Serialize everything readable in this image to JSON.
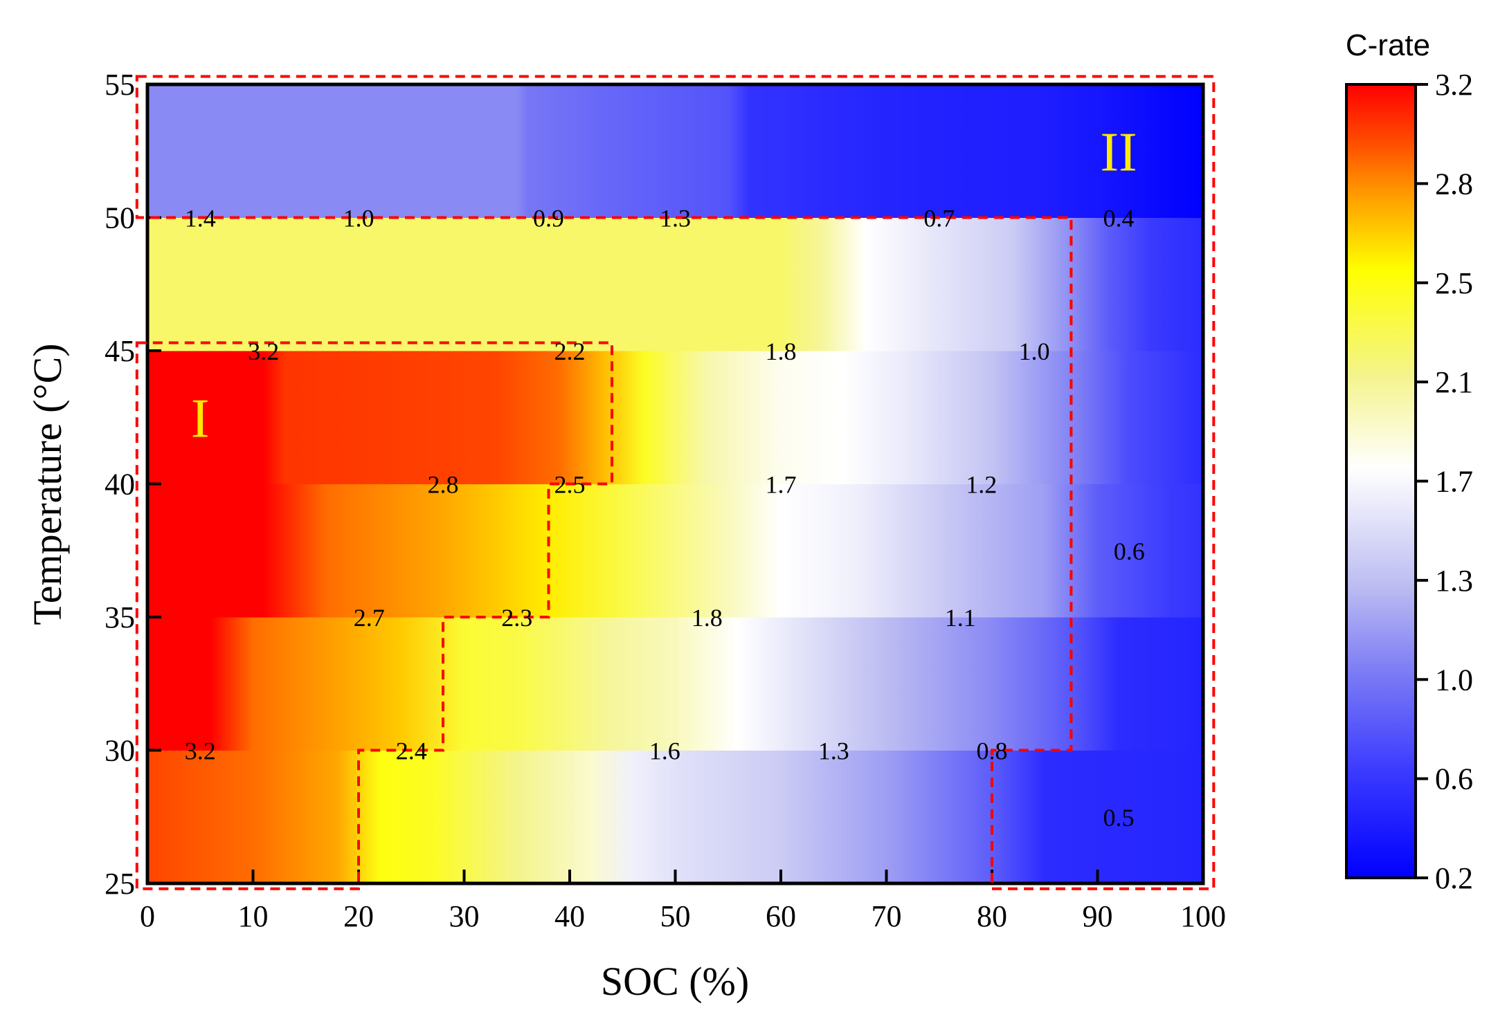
{
  "chart_data": {
    "type": "heatmap",
    "xlabel": "SOC (%)",
    "ylabel": "Temperature (°C)",
    "xlim": [
      0,
      100
    ],
    "ylim": [
      25,
      55
    ],
    "xticks": [
      "0",
      "10",
      "20",
      "30",
      "40",
      "50",
      "60",
      "70",
      "80",
      "90",
      "100"
    ],
    "yticks": [
      "25",
      "30",
      "35",
      "40",
      "45",
      "50",
      "55"
    ],
    "colorbar": {
      "title": "C-rate",
      "range": [
        0.2,
        3.2
      ],
      "ticks": [
        "0.2",
        "0.6",
        "1.0",
        "1.3",
        "1.7",
        "2.1",
        "2.5",
        "2.8",
        "3.2"
      ],
      "stops": [
        {
          "value": 0.2,
          "color": "#0000ff"
        },
        {
          "value": 0.6,
          "color": "#3a3aff"
        },
        {
          "value": 1.0,
          "color": "#8080f5"
        },
        {
          "value": 1.3,
          "color": "#bcbcf2"
        },
        {
          "value": 1.75,
          "color": "#ffffff"
        },
        {
          "value": 2.1,
          "color": "#f4f48c"
        },
        {
          "value": 2.5,
          "color": "#ffff00"
        },
        {
          "value": 2.8,
          "color": "#ff9500"
        },
        {
          "value": 3.0,
          "color": "#ff4500"
        },
        {
          "value": 3.2,
          "color": "#ff0000"
        }
      ]
    },
    "bands": [
      {
        "temp_range": [
          25,
          30
        ],
        "points": [
          [
            0,
            3.0
          ],
          [
            10,
            2.9
          ],
          [
            18,
            2.75
          ],
          [
            22,
            2.45
          ],
          [
            27,
            2.4
          ],
          [
            35,
            2.1
          ],
          [
            42,
            1.9
          ],
          [
            46,
            1.65
          ],
          [
            50,
            1.55
          ],
          [
            60,
            1.4
          ],
          [
            70,
            1.15
          ],
          [
            80,
            0.8
          ],
          [
            85,
            0.5
          ],
          [
            100,
            0.45
          ]
        ]
      },
      {
        "temp_range": [
          30,
          35
        ],
        "points": [
          [
            0,
            3.2
          ],
          [
            6,
            3.2
          ],
          [
            10,
            2.9
          ],
          [
            24,
            2.65
          ],
          [
            30,
            2.35
          ],
          [
            35,
            2.3
          ],
          [
            44,
            2.05
          ],
          [
            50,
            1.95
          ],
          [
            56,
            1.75
          ],
          [
            70,
            1.3
          ],
          [
            80,
            1.05
          ],
          [
            88,
            0.75
          ],
          [
            92,
            0.5
          ],
          [
            100,
            0.45
          ]
        ]
      },
      {
        "temp_range": [
          35,
          40
        ],
        "points": [
          [
            0,
            3.2
          ],
          [
            11,
            3.2
          ],
          [
            17,
            2.9
          ],
          [
            28,
            2.75
          ],
          [
            38,
            2.55
          ],
          [
            45,
            2.3
          ],
          [
            55,
            1.95
          ],
          [
            60,
            1.75
          ],
          [
            67,
            1.65
          ],
          [
            75,
            1.4
          ],
          [
            85,
            1.15
          ],
          [
            90,
            0.8
          ],
          [
            97,
            0.6
          ],
          [
            100,
            0.55
          ]
        ]
      },
      {
        "temp_range": [
          40,
          45
        ],
        "points": [
          [
            0,
            3.2
          ],
          [
            11,
            3.2
          ],
          [
            13,
            3.05
          ],
          [
            33,
            3.0
          ],
          [
            39,
            2.9
          ],
          [
            43,
            2.7
          ],
          [
            47,
            2.4
          ],
          [
            53,
            2.0
          ],
          [
            60,
            1.8
          ],
          [
            66,
            1.75
          ],
          [
            72,
            1.6
          ],
          [
            80,
            1.35
          ],
          [
            88,
            1.0
          ],
          [
            93,
            0.7
          ],
          [
            100,
            0.5
          ]
        ]
      },
      {
        "temp_range": [
          45,
          50
        ],
        "points": [
          [
            0,
            2.2
          ],
          [
            60,
            2.2
          ],
          [
            64,
            2.05
          ],
          [
            68,
            1.75
          ],
          [
            76,
            1.55
          ],
          [
            82,
            1.4
          ],
          [
            87,
            1.1
          ],
          [
            91,
            0.8
          ],
          [
            95,
            0.6
          ],
          [
            100,
            0.5
          ]
        ]
      },
      {
        "temp_range": [
          50,
          55
        ],
        "points": [
          [
            0,
            1.05
          ],
          [
            35,
            1.05
          ],
          [
            36,
            0.95
          ],
          [
            44,
            0.85
          ],
          [
            55,
            0.75
          ],
          [
            57,
            0.55
          ],
          [
            70,
            0.45
          ],
          [
            85,
            0.4
          ],
          [
            90,
            0.35
          ],
          [
            100,
            0.2
          ]
        ]
      }
    ],
    "annotations": [
      {
        "x": 5,
        "y": 30,
        "text": "3.2"
      },
      {
        "x": 25,
        "y": 30,
        "text": "2.4"
      },
      {
        "x": 49,
        "y": 30,
        "text": "1.6"
      },
      {
        "x": 65,
        "y": 30,
        "text": "1.3"
      },
      {
        "x": 80,
        "y": 30,
        "text": "0.8"
      },
      {
        "x": 92,
        "y": 27.5,
        "text": "0.5"
      },
      {
        "x": 21,
        "y": 35,
        "text": "2.7"
      },
      {
        "x": 35,
        "y": 35,
        "text": "2.3"
      },
      {
        "x": 53,
        "y": 35,
        "text": "1.8"
      },
      {
        "x": 77,
        "y": 35,
        "text": "1.1"
      },
      {
        "x": 28,
        "y": 40,
        "text": "2.8"
      },
      {
        "x": 40,
        "y": 40,
        "text": "2.5"
      },
      {
        "x": 60,
        "y": 40,
        "text": "1.7"
      },
      {
        "x": 79,
        "y": 40,
        "text": "1.2"
      },
      {
        "x": 93,
        "y": 37.5,
        "text": "0.6"
      },
      {
        "x": 11,
        "y": 45,
        "text": "3.2"
      },
      {
        "x": 40,
        "y": 45,
        "text": "2.2"
      },
      {
        "x": 60,
        "y": 45,
        "text": "1.8"
      },
      {
        "x": 84,
        "y": 45,
        "text": "1.0"
      },
      {
        "x": 5,
        "y": 50,
        "text": "1.4"
      },
      {
        "x": 20,
        "y": 50,
        "text": "1.0"
      },
      {
        "x": 38,
        "y": 50,
        "text": "0.9"
      },
      {
        "x": 50,
        "y": 50,
        "text": "1.3"
      },
      {
        "x": 75,
        "y": 50,
        "text": "0.7"
      },
      {
        "x": 92,
        "y": 50,
        "text": "0.4"
      }
    ],
    "regions": [
      {
        "label": "I",
        "color": "#ffea00",
        "label_pos": [
          5,
          42.5
        ],
        "outline": [
          [
            -1,
            45.3
          ],
          [
            44,
            45.3
          ],
          [
            44,
            40
          ],
          [
            38,
            40
          ],
          [
            38,
            35
          ],
          [
            28,
            35
          ],
          [
            28,
            30
          ],
          [
            20,
            30
          ],
          [
            20,
            24.8
          ],
          [
            -1,
            24.8
          ]
        ]
      },
      {
        "label": "II",
        "color": "#ffea00",
        "label_pos": [
          92,
          52.5
        ],
        "outline": [
          [
            -1,
            55.3
          ],
          [
            101,
            55.3
          ],
          [
            101,
            24.8
          ],
          [
            80,
            24.8
          ],
          [
            80,
            30
          ],
          [
            87.5,
            30
          ],
          [
            87.5,
            50
          ],
          [
            -1,
            50
          ]
        ]
      }
    ],
    "outline_color": "#ff0000"
  }
}
